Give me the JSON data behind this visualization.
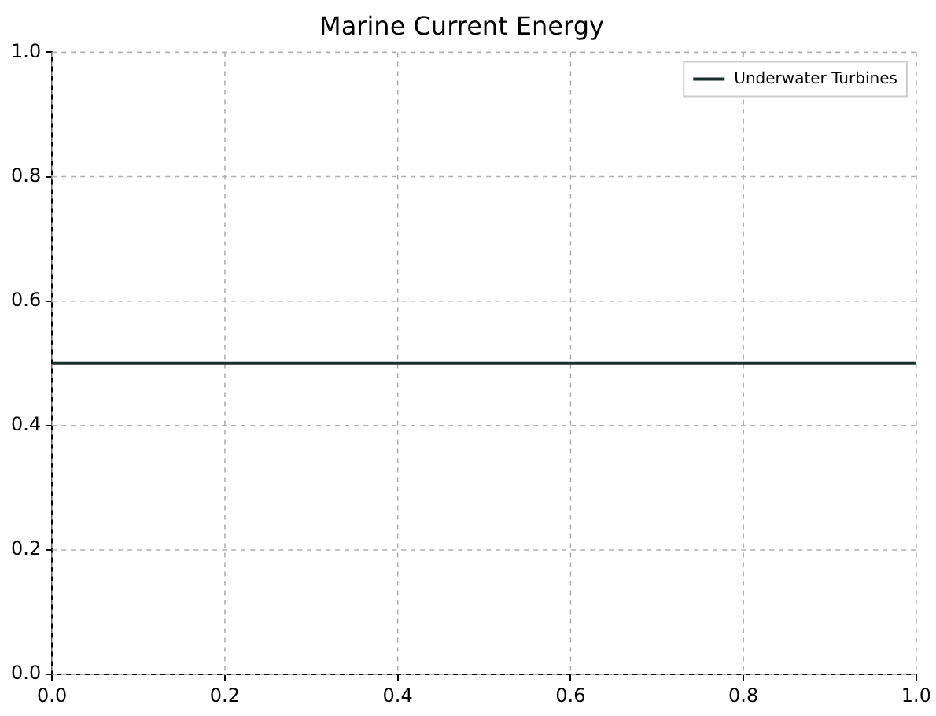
{
  "chart_data": {
    "type": "line",
    "title": "Marine Current Energy",
    "x": [
      0,
      1
    ],
    "series": [
      {
        "name": "Underwater Turbines",
        "color": "#1c2e2e",
        "values": [
          0.5,
          0.5
        ]
      }
    ],
    "xlim": [
      0,
      1
    ],
    "ylim": [
      0,
      1
    ],
    "xticks": [
      {
        "value": 0,
        "label": "0.0"
      },
      0.2,
      0.4,
      0.6,
      0.8,
      {
        "value": 1,
        "label": "1.0"
      }
    ],
    "yticks": [
      {
        "value": 0,
        "label": "0.0"
      },
      0.2,
      0.4,
      0.6,
      0.8,
      {
        "value": 1,
        "label": "1.0"
      }
    ],
    "grid": true,
    "legend": "top right",
    "marker": "none",
    "line_style": "solid"
  }
}
